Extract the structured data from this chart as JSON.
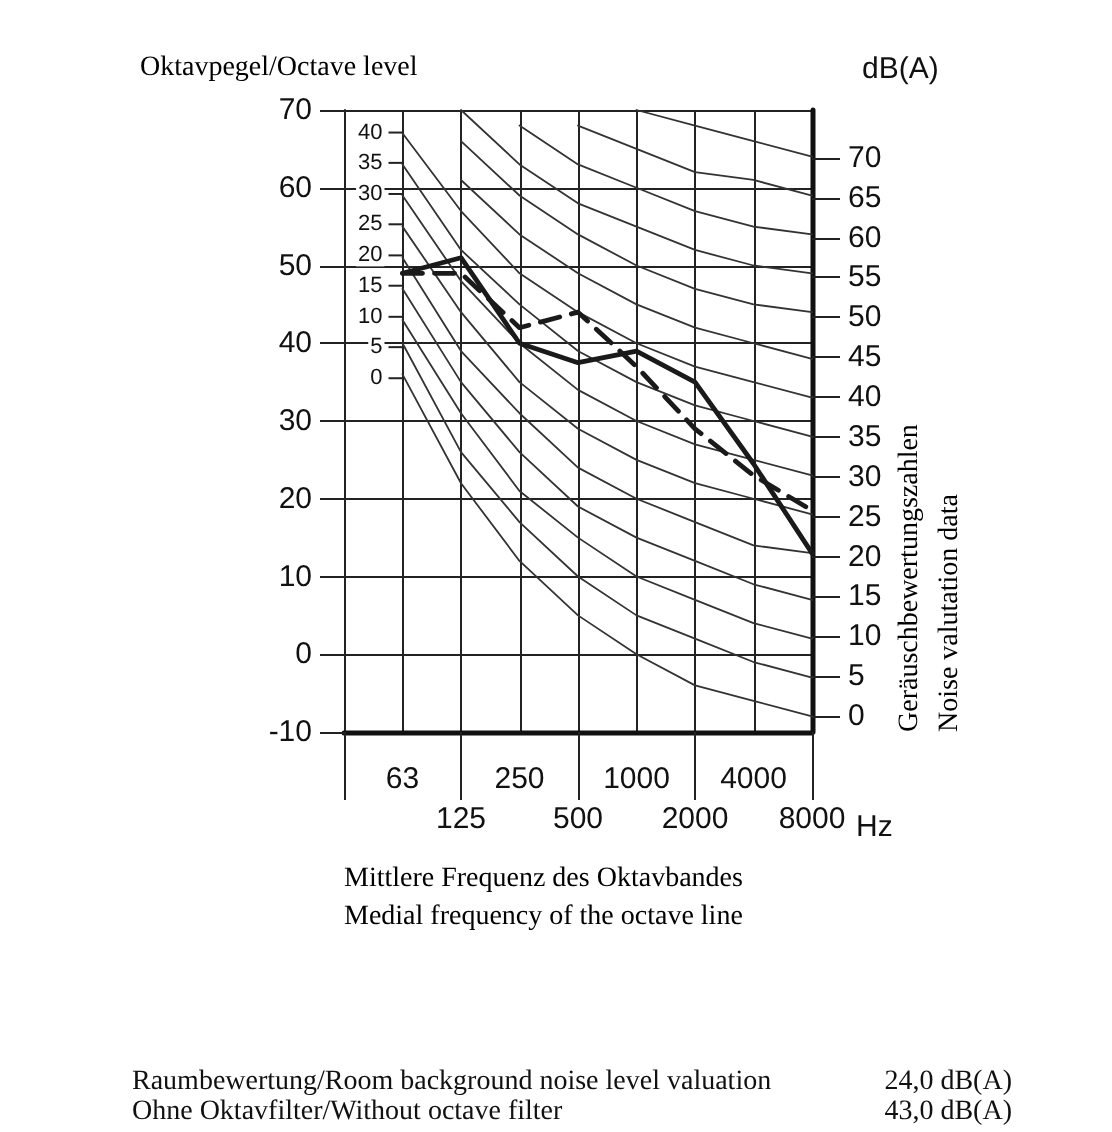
{
  "chart_data": {
    "type": "line",
    "ylabel": "Oktavpegel/Octave level",
    "xlabel": "Mittlere Frequenz des Oktavbandes\nMedial frequency of the octave line",
    "y2label": "Geräuschbewertungszahlen\nNoise valutation data",
    "annotations": [
      "Hz",
      "dB(A)",
      "Raumbewertung/Room background noise level valuation",
      "24,0 dB(A)",
      "Ohne Oktavfilter/Without octave filter",
      "43,0 dB(A)",
      {
        "text": "0",
        "x": "63",
        "y": 35.5
      },
      {
        "text": "5",
        "x": "63",
        "y": 39.5
      },
      {
        "text": "10",
        "x": "63",
        "y": 43.4
      },
      {
        "text": "15",
        "x": "63",
        "y": 47.4
      },
      {
        "text": "20",
        "x": "63",
        "y": 51.3
      },
      {
        "text": "25",
        "x": "63",
        "y": 55.3
      },
      {
        "text": "30",
        "x": "63",
        "y": 59.2
      },
      {
        "text": "35",
        "x": "63",
        "y": 63.2
      },
      {
        "text": "40",
        "x": "63",
        "y": 67.1
      }
    ],
    "categories": [
      null,
      "63",
      "125",
      "250",
      "500",
      "1000",
      "2000",
      "4000",
      "8000"
    ],
    "ylim": [
      -10,
      70
    ],
    "yticks": [
      -10,
      0,
      10,
      20,
      30,
      40,
      50,
      60,
      70
    ],
    "y2lim": [
      -2,
      76
    ],
    "y2ticks": [
      0,
      5,
      10,
      15,
      20,
      25,
      30,
      35,
      40,
      45,
      50,
      55,
      60,
      65,
      70
    ],
    "grid": true,
    "marker": "none",
    "series": [
      {
        "color": "#333333",
        "values": [
          null,
          36,
          22,
          12,
          5,
          0,
          -4,
          -6,
          -8
        ]
      },
      {
        "color": "#333333",
        "values": [
          null,
          40,
          26,
          17,
          10,
          5,
          2,
          -1,
          -3
        ]
      },
      {
        "color": "#333333",
        "values": [
          null,
          43,
          31,
          21,
          15,
          10,
          7,
          4,
          2
        ]
      },
      {
        "color": "#333333",
        "values": [
          null,
          47,
          35,
          26,
          19,
          15,
          12,
          9,
          7
        ]
      },
      {
        "color": "#333333",
        "values": [
          null,
          51,
          39,
          31,
          24,
          20,
          17,
          14,
          13
        ]
      },
      {
        "color": "#333333",
        "values": [
          null,
          55,
          44,
          35,
          29,
          25,
          22,
          20,
          18
        ]
      },
      {
        "color": "#333333",
        "values": [
          null,
          59,
          48,
          40,
          34,
          30,
          27,
          25,
          23
        ]
      },
      {
        "color": "#333333",
        "values": [
          null,
          63,
          52,
          45,
          39,
          35,
          32,
          30,
          28
        ]
      },
      {
        "color": "#333333",
        "values": [
          null,
          67,
          57,
          49,
          44,
          40,
          37,
          35,
          33
        ]
      },
      {
        "color": "#333333",
        "values": [
          null,
          null,
          61,
          54,
          49,
          45,
          42,
          40,
          38
        ]
      },
      {
        "color": "#333333",
        "values": [
          null,
          null,
          66,
          59,
          54,
          50,
          47,
          45,
          44
        ]
      },
      {
        "color": "#333333",
        "values": [
          null,
          null,
          70,
          63,
          58,
          55,
          52,
          50,
          49
        ]
      },
      {
        "color": "#333333",
        "values": [
          null,
          null,
          null,
          68,
          63,
          60,
          57,
          55,
          54
        ]
      },
      {
        "color": "#333333",
        "values": [
          null,
          null,
          null,
          null,
          68,
          65,
          62,
          61,
          59
        ]
      },
      {
        "color": "#333333",
        "values": [
          null,
          null,
          null,
          null,
          null,
          70,
          68,
          66,
          64
        ]
      },
      {
        "color": "#1a1a1a",
        "line_style": "solid",
        "values": [
          null,
          49,
          51,
          40,
          37.5,
          39,
          35,
          24.5,
          13
        ]
      },
      {
        "color": "#1a1a1a",
        "line_style": "dashed",
        "values": [
          null,
          49,
          49,
          42,
          44,
          37,
          29,
          23,
          18.5
        ]
      }
    ]
  }
}
